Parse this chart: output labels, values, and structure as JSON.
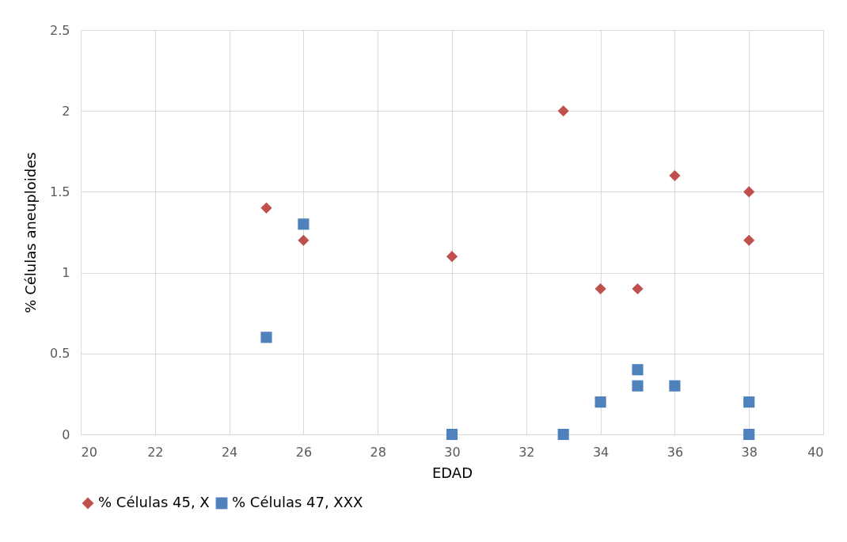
{
  "chart_data": {
    "type": "scatter",
    "xlabel": "EDAD",
    "ylabel": "% Células aneuploides",
    "xlim": [
      20,
      40
    ],
    "xticks": [
      20,
      22,
      24,
      26,
      28,
      30,
      32,
      34,
      36,
      38,
      40
    ],
    "ylim": [
      0,
      2.5
    ],
    "yticks": [
      0,
      0.5,
      1,
      1.5,
      2,
      2.5
    ],
    "grid": true,
    "legend": "bottom",
    "series": [
      {
        "name": "% Células 45, X",
        "color": "#c0504d",
        "marker": "diamond",
        "x": [
          25,
          26,
          30,
          33,
          34,
          35,
          36,
          38,
          38
        ],
        "values": [
          1.4,
          1.2,
          1.1,
          2,
          0.9,
          0.9,
          1.6,
          1.5,
          1.2
        ]
      },
      {
        "name": "% Células 47, XXX",
        "color": "#4f81bd",
        "marker": "square",
        "x": [
          25,
          26,
          30,
          33,
          34,
          35,
          35,
          36,
          38,
          38
        ],
        "values": [
          0.6,
          1.3,
          0,
          0,
          0.2,
          0.4,
          0.3,
          0.3,
          0.2,
          0
        ]
      }
    ]
  }
}
